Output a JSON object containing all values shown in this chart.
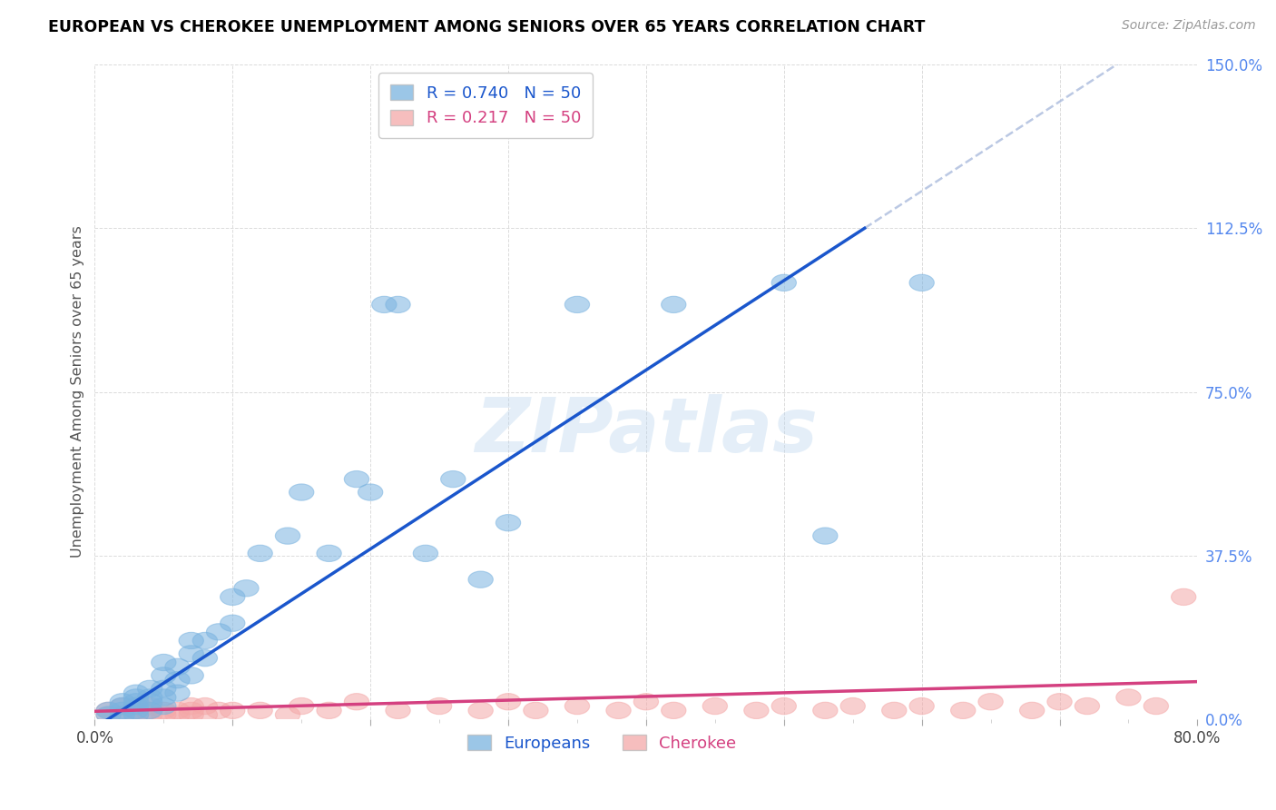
{
  "title": "EUROPEAN VS CHEROKEE UNEMPLOYMENT AMONG SENIORS OVER 65 YEARS CORRELATION CHART",
  "source": "Source: ZipAtlas.com",
  "ylabel": "Unemployment Among Seniors over 65 years",
  "xlim": [
    0.0,
    0.8
  ],
  "ylim": [
    0.0,
    1.5
  ],
  "xticks": [
    0.0,
    0.1,
    0.2,
    0.3,
    0.4,
    0.5,
    0.6,
    0.7,
    0.8
  ],
  "yticks": [
    0.0,
    0.375,
    0.75,
    1.125,
    1.5
  ],
  "yticklabels": [
    "0.0%",
    "37.5%",
    "75.0%",
    "112.5%",
    "150.0%"
  ],
  "legend_blue_r": "R = 0.740",
  "legend_blue_n": "N = 50",
  "legend_pink_r": "R = 0.217",
  "legend_pink_n": "N = 50",
  "blue_color": "#7ab3e0",
  "pink_color": "#f4a8a8",
  "blue_line_color": "#1a56cc",
  "pink_line_color": "#d44080",
  "watermark": "ZIPatlas",
  "bg_color": "#ffffff",
  "grid_color": "#d8d8d8",
  "title_color": "#000000",
  "right_tick_color": "#5588ee",
  "eu_slope": 2.05,
  "eu_intercept": -0.02,
  "ch_slope": 0.085,
  "ch_intercept": 0.018,
  "europeans_x": [
    0.01,
    0.01,
    0.02,
    0.02,
    0.02,
    0.02,
    0.03,
    0.03,
    0.03,
    0.03,
    0.03,
    0.03,
    0.04,
    0.04,
    0.04,
    0.04,
    0.05,
    0.05,
    0.05,
    0.05,
    0.05,
    0.06,
    0.06,
    0.06,
    0.07,
    0.07,
    0.07,
    0.08,
    0.08,
    0.09,
    0.1,
    0.1,
    0.11,
    0.12,
    0.14,
    0.15,
    0.17,
    0.19,
    0.2,
    0.21,
    0.22,
    0.24,
    0.26,
    0.28,
    0.3,
    0.35,
    0.42,
    0.5,
    0.53,
    0.6
  ],
  "europeans_y": [
    0.01,
    0.02,
    0.01,
    0.02,
    0.03,
    0.04,
    0.01,
    0.02,
    0.03,
    0.04,
    0.05,
    0.06,
    0.02,
    0.04,
    0.05,
    0.07,
    0.03,
    0.05,
    0.07,
    0.1,
    0.13,
    0.06,
    0.09,
    0.12,
    0.1,
    0.15,
    0.18,
    0.14,
    0.18,
    0.2,
    0.22,
    0.28,
    0.3,
    0.38,
    0.42,
    0.52,
    0.38,
    0.55,
    0.52,
    0.95,
    0.95,
    0.38,
    0.55,
    0.32,
    0.45,
    0.95,
    0.95,
    1.0,
    0.42,
    1.0
  ],
  "cherokee_x": [
    0.01,
    0.01,
    0.02,
    0.02,
    0.03,
    0.03,
    0.03,
    0.04,
    0.04,
    0.04,
    0.05,
    0.05,
    0.06,
    0.06,
    0.07,
    0.07,
    0.07,
    0.08,
    0.08,
    0.09,
    0.1,
    0.12,
    0.14,
    0.15,
    0.17,
    0.19,
    0.22,
    0.25,
    0.28,
    0.3,
    0.32,
    0.35,
    0.38,
    0.4,
    0.42,
    0.45,
    0.48,
    0.5,
    0.53,
    0.55,
    0.58,
    0.6,
    0.63,
    0.65,
    0.68,
    0.7,
    0.72,
    0.75,
    0.77,
    0.79
  ],
  "cherokee_y": [
    0.01,
    0.02,
    0.01,
    0.03,
    0.01,
    0.02,
    0.03,
    0.01,
    0.02,
    0.03,
    0.01,
    0.02,
    0.01,
    0.02,
    0.01,
    0.02,
    0.03,
    0.01,
    0.03,
    0.02,
    0.02,
    0.02,
    0.01,
    0.03,
    0.02,
    0.04,
    0.02,
    0.03,
    0.02,
    0.04,
    0.02,
    0.03,
    0.02,
    0.04,
    0.02,
    0.03,
    0.02,
    0.03,
    0.02,
    0.03,
    0.02,
    0.03,
    0.02,
    0.04,
    0.02,
    0.04,
    0.03,
    0.05,
    0.03,
    0.28
  ]
}
